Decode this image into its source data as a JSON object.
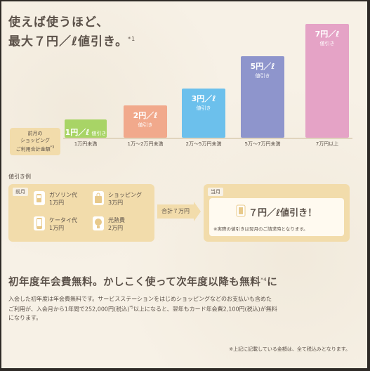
{
  "colors": {
    "bar1": "#a8d466",
    "bar2": "#f1a98c",
    "bar3": "#6cc0ec",
    "bar4": "#8e95cc",
    "bar5": "#e5a3c6",
    "panel": "#f2dcab"
  },
  "heading": {
    "line1": "使えば使うほど、",
    "line2": "最大７円／ℓ値引き。",
    "note_mark": "*1"
  },
  "axis_label": {
    "line1": "前月の",
    "line2": "ショッピング",
    "line3": "ご利用合計金額",
    "note_mark": "*3"
  },
  "chart_data": {
    "type": "bar",
    "categories": [
      "1万円未満",
      "1万～2万円未満",
      "2万～5万円未満",
      "5万～7万円未満",
      "7万円以上"
    ],
    "values": [
      1,
      2,
      3,
      5,
      7
    ],
    "bar_rate_labels": [
      "1円／ℓ",
      "2円／ℓ",
      "3円／ℓ",
      "5円／ℓ",
      "7円／ℓ"
    ],
    "bar_sub_label": "値引き"
  },
  "example": {
    "label": "値引き例",
    "month_tag": "前月",
    "items": [
      {
        "icon": "fuel-pump-icon",
        "name": "ガソリン代",
        "amount": "1万円"
      },
      {
        "icon": "shopping-bag-icon",
        "name": "ショッピング",
        "amount": "3万円"
      },
      {
        "icon": "mobile-phone-icon",
        "name": "ケータイ代",
        "amount": "1万円"
      },
      {
        "icon": "light-bulb-icon",
        "name": "光熱費",
        "amount": "2万円"
      }
    ],
    "total": "合計７万円",
    "current_tag": "当月",
    "result": "７円／ℓ値引き！",
    "result_note": "※実際の値引きは翌月のご請求時となります。"
  },
  "fee": {
    "title": "初年度年会費無料。かしこく使って次年度以降も無料",
    "title_mark": "*4",
    "title_end": "に",
    "body_line1": "入会した初年度は年会費無料です。サービスステーションをはじめショッピングなどのお支払いも含めた",
    "body_line2a": "ご利用が、入会月から1年間で252,000円(税込)",
    "body_line2_mark": "*5",
    "body_line2b": "以上になると、翌年もカード年会費2,100円(税込)が無料",
    "body_line3": "になります。"
  },
  "footnote": "※上記に記載している金額は、全て税込みとなります。"
}
